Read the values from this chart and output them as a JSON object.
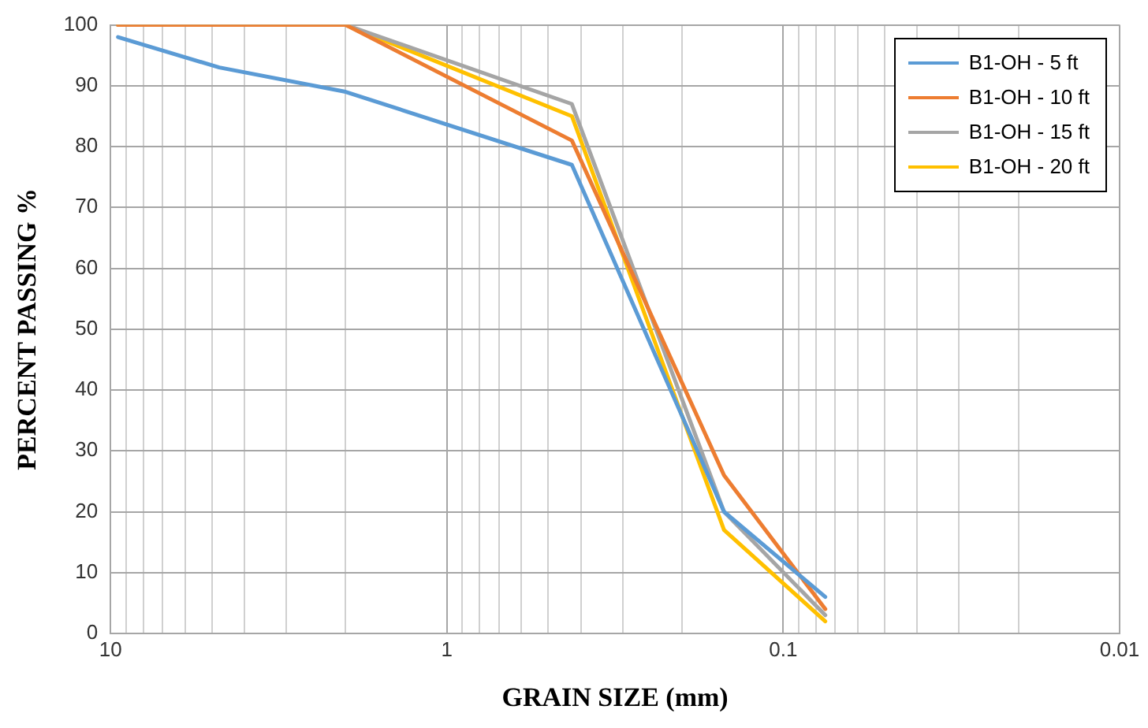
{
  "chart_data": {
    "type": "line",
    "xlabel": "GRAIN SIZE (mm)",
    "ylabel": "PERCENT PASSING %",
    "x": [
      9.5,
      4.75,
      2.0,
      0.425,
      0.15,
      0.075
    ],
    "series": [
      {
        "name": "B1-OH - 5 ft",
        "color": "#5b9bd5",
        "values": [
          98,
          93,
          89,
          77,
          20,
          6
        ]
      },
      {
        "name": "B1-OH - 10 ft",
        "color": "#ed7d31",
        "values": [
          100,
          100,
          100,
          81,
          26,
          4
        ]
      },
      {
        "name": "B1-OH - 15 ft",
        "color": "#a5a5a5",
        "values": [
          100,
          100,
          100,
          87,
          20,
          3
        ]
      },
      {
        "name": "B1-OH - 20 ft",
        "color": "#ffc000",
        "values": [
          100,
          100,
          100,
          85,
          17,
          2
        ]
      }
    ],
    "log": "x",
    "xlim": [
      10,
      0.01
    ],
    "xticks": [
      10,
      {
        "value": 9,
        "label": null
      },
      {
        "value": 8,
        "label": null
      },
      {
        "value": 7,
        "label": null
      },
      {
        "value": 6,
        "label": null
      },
      {
        "value": 5,
        "label": null
      },
      {
        "value": 4,
        "label": null
      },
      {
        "value": 3,
        "label": null
      },
      {
        "value": 2,
        "label": null
      },
      1,
      {
        "value": 0.9,
        "label": null
      },
      {
        "value": 0.8,
        "label": null
      },
      {
        "value": 0.7,
        "label": null
      },
      {
        "value": 0.6,
        "label": null
      },
      {
        "value": 0.5,
        "label": null
      },
      {
        "value": 0.4,
        "label": null
      },
      {
        "value": 0.3,
        "label": null
      },
      {
        "value": 0.2,
        "label": null
      },
      0.1,
      {
        "value": 0.09,
        "label": null
      },
      {
        "value": 0.08,
        "label": null
      },
      {
        "value": 0.07,
        "label": null
      },
      {
        "value": 0.06,
        "label": null
      },
      {
        "value": 0.05,
        "label": null
      },
      {
        "value": 0.04,
        "label": null
      },
      {
        "value": 0.03,
        "label": null
      },
      {
        "value": 0.02,
        "label": null
      },
      0.01
    ],
    "ylim": [
      0,
      100
    ],
    "yticks": [
      0,
      10,
      20,
      30,
      40,
      50,
      60,
      70,
      80,
      90,
      100
    ],
    "grid": true,
    "legend": "top right",
    "marker": "none",
    "line_style": "solid"
  }
}
